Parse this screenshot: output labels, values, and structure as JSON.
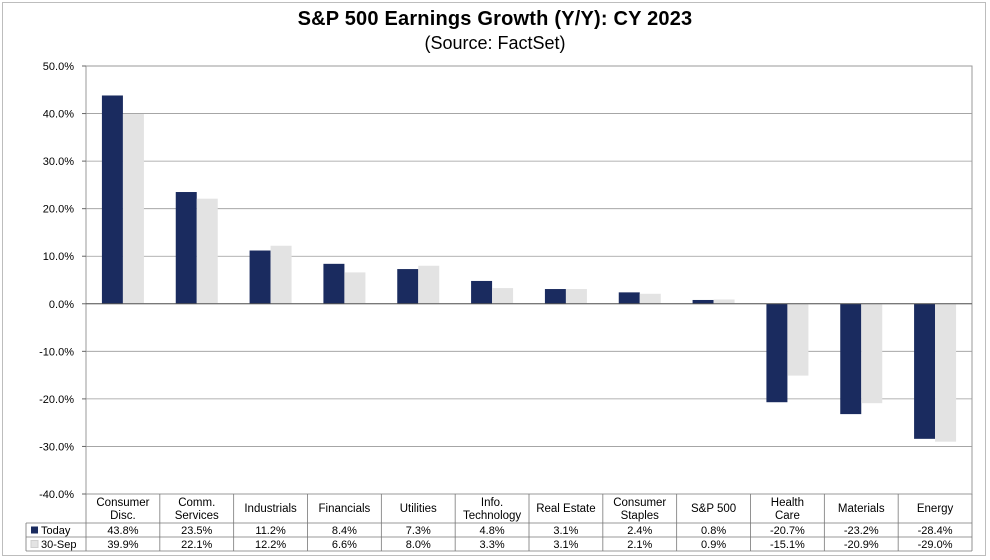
{
  "chart_data": {
    "type": "bar",
    "title": "S&P 500 Earnings Growth (Y/Y): CY 2023",
    "subtitle": "(Source: FactSet)",
    "categories": [
      [
        "Consumer",
        "Disc."
      ],
      [
        "Comm.",
        "Services"
      ],
      [
        "Industrials"
      ],
      [
        "Financials"
      ],
      [
        "Utilities"
      ],
      [
        "Info.",
        "Technology"
      ],
      [
        "Real Estate"
      ],
      [
        "Consumer",
        "Staples"
      ],
      [
        "S&P 500"
      ],
      [
        "Health",
        "Care"
      ],
      [
        "Materials"
      ],
      [
        "Energy"
      ]
    ],
    "series": [
      {
        "name": "Today",
        "color": "#1a2b5f",
        "values": [
          43.8,
          23.5,
          11.2,
          8.4,
          7.3,
          4.8,
          3.1,
          2.4,
          0.8,
          -20.7,
          -23.2,
          -28.4
        ],
        "labels": [
          "43.8%",
          "23.5%",
          "11.2%",
          "8.4%",
          "7.3%",
          "4.8%",
          "3.1%",
          "2.4%",
          "0.8%",
          "-20.7%",
          "-23.2%",
          "-28.4%"
        ]
      },
      {
        "name": "30-Sep",
        "color": "#e3e3e3",
        "values": [
          39.9,
          22.1,
          12.2,
          6.6,
          8.0,
          3.3,
          3.1,
          2.1,
          0.9,
          -15.1,
          -20.9,
          -29.0
        ],
        "labels": [
          "39.9%",
          "22.1%",
          "12.2%",
          "6.6%",
          "8.0%",
          "3.3%",
          "3.1%",
          "2.1%",
          "0.9%",
          "-15.1%",
          "-20.9%",
          "-29.0%"
        ]
      }
    ],
    "ylim": [
      -40,
      50
    ],
    "yticks": [
      50,
      40,
      30,
      20,
      10,
      0,
      -10,
      -20,
      -30,
      -40
    ],
    "ytick_labels": [
      "50.0%",
      "40.0%",
      "30.0%",
      "20.0%",
      "10.0%",
      "0.0%",
      "-10.0%",
      "-20.0%",
      "-30.0%",
      "-40.0%"
    ],
    "grid": true,
    "legend": "data-table-below"
  }
}
